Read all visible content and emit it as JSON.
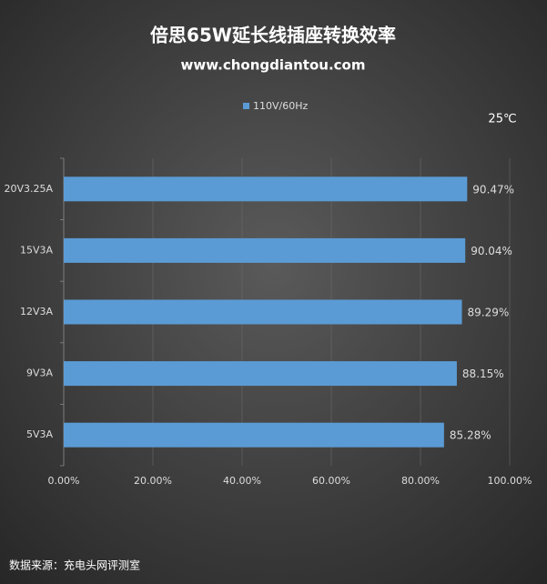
{
  "chart_data": {
    "type": "bar",
    "orientation": "horizontal",
    "title": "倍思65W延长线插座转换效率",
    "subtitle": "www.chongdiantou.com",
    "annotation": "25℃",
    "source": "数据来源：充电头网评测室",
    "categories": [
      "20V3.25A",
      "15V3A",
      "12V3A",
      "9V3A",
      "5V3A"
    ],
    "series": [
      {
        "name": "110V/60Hz",
        "color": "#5b9bd5",
        "values": [
          90.47,
          90.04,
          89.29,
          88.15,
          85.28
        ],
        "value_labels": [
          "90.47%",
          "90.04%",
          "89.29%",
          "88.15%",
          "85.28%"
        ]
      }
    ],
    "xlim": [
      0,
      100
    ],
    "xticks": [
      {
        "value": 0,
        "label": "0.00%"
      },
      {
        "value": 20,
        "label": "20.00%"
      },
      {
        "value": 40,
        "label": "40.00%"
      },
      {
        "value": 60,
        "label": "60.00%"
      },
      {
        "value": 80,
        "label": "80.00%"
      },
      {
        "value": 100,
        "label": "100.00%"
      }
    ],
    "grid": true
  }
}
